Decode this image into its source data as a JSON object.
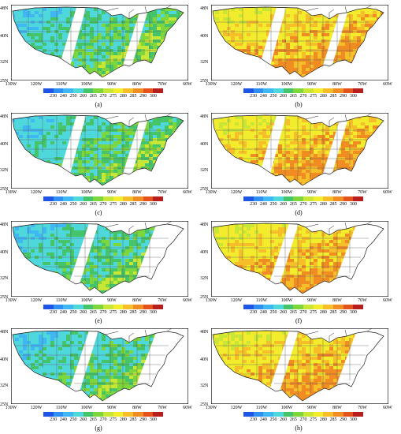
{
  "panels": [
    {
      "label": "(a)",
      "scheme": "cool",
      "swath": "lower"
    },
    {
      "label": "(b)",
      "scheme": "warm",
      "swath": "lower"
    },
    {
      "label": "(c)",
      "scheme": "cool",
      "swath": "lower"
    },
    {
      "label": "(d)",
      "scheme": "warm",
      "swath": "lower"
    },
    {
      "label": "(e)",
      "scheme": "cool",
      "swath": "upper"
    },
    {
      "label": "(f)",
      "scheme": "warm",
      "swath": "upper"
    },
    {
      "label": "(g)",
      "scheme": "cool",
      "swath": "upper"
    },
    {
      "label": "(h)",
      "scheme": "warm",
      "swath": "upper"
    }
  ],
  "latitudes": [
    "48N",
    "40N",
    "32N",
    "25N"
  ],
  "longitudes": [
    "130W",
    "120W",
    "110W",
    "100W",
    "90W",
    "80W",
    "70W",
    "60W"
  ],
  "colorbar": {
    "ticks": [
      "230",
      "240",
      "250",
      "260",
      "265",
      "270",
      "275",
      "280",
      "285",
      "290",
      "300"
    ],
    "colors": [
      "#1e55e6",
      "#2f8ff0",
      "#3fb7f2",
      "#4fd8dc",
      "#46c46a",
      "#7dd63c",
      "#c8e636",
      "#f2ec2c",
      "#f6bf2a",
      "#f08c22",
      "#e4521d",
      "#b81d1d"
    ]
  }
}
